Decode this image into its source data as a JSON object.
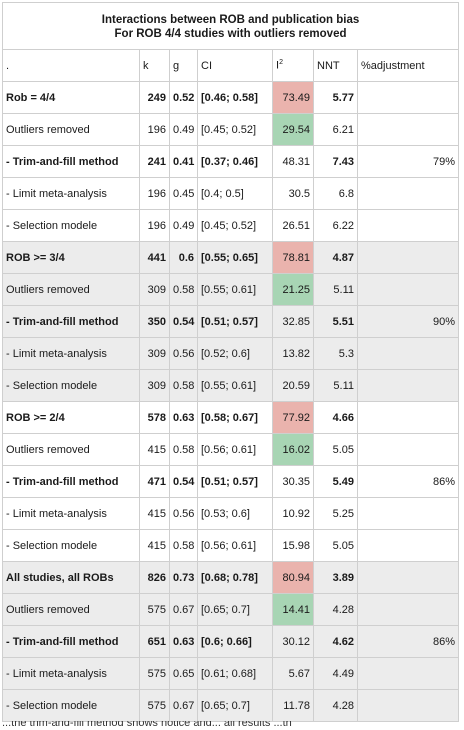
{
  "title_line1": "Interactions between ROB and publication bias",
  "title_line2": "For ROB 4/4 studies with outliers removed",
  "header": {
    "label": ".",
    "k": "k",
    "g": "g",
    "ci": "CI",
    "i2": "I",
    "i2_sup": "2",
    "nnt": "NNT",
    "adj": "%adjustment"
  },
  "rows": [
    {
      "label": "Rob = 4/4",
      "k": "249",
      "g": "0.52",
      "ci": "[0.46; 0.58]",
      "i2": "73.49",
      "nnt": "5.77",
      "adj": "",
      "bold": true,
      "grey": false,
      "i2color": "red"
    },
    {
      "label": "Outliers removed",
      "k": "196",
      "g": "0.49",
      "ci": "[0.45; 0.52]",
      "i2": "29.54",
      "nnt": "6.21",
      "adj": "",
      "bold": false,
      "grey": false,
      "i2color": "green"
    },
    {
      "label": "- Trim-and-fill method",
      "k": "241",
      "g": "0.41",
      "ci": "[0.37; 0.46]",
      "i2": "48.31",
      "nnt": "7.43",
      "adj": "79%",
      "bold": true,
      "grey": false,
      "i2color": ""
    },
    {
      "label": "- Limit meta-analysis",
      "k": "196",
      "g": "0.45",
      "ci": "[0.4; 0.5]",
      "i2": "30.5",
      "nnt": "6.8",
      "adj": "",
      "bold": false,
      "grey": false,
      "i2color": ""
    },
    {
      "label": "- Selection modele",
      "k": "196",
      "g": "0.49",
      "ci": "[0.45; 0.52]",
      "i2": "26.51",
      "nnt": "6.22",
      "adj": "",
      "bold": false,
      "grey": false,
      "i2color": ""
    },
    {
      "label": "ROB >= 3/4",
      "k": "441",
      "g": "0.6",
      "ci": "[0.55; 0.65]",
      "i2": "78.81",
      "nnt": "4.87",
      "adj": "",
      "bold": true,
      "grey": true,
      "i2color": "red"
    },
    {
      "label": "Outliers removed",
      "k": "309",
      "g": "0.58",
      "ci": "[0.55; 0.61]",
      "i2": "21.25",
      "nnt": "5.11",
      "adj": "",
      "bold": false,
      "grey": true,
      "i2color": "green"
    },
    {
      "label": "- Trim-and-fill method",
      "k": "350",
      "g": "0.54",
      "ci": "[0.51; 0.57]",
      "i2": "32.85",
      "nnt": "5.51",
      "adj": "90%",
      "bold": true,
      "grey": true,
      "i2color": ""
    },
    {
      "label": "- Limit meta-analysis",
      "k": "309",
      "g": "0.56",
      "ci": "[0.52; 0.6]",
      "i2": "13.82",
      "nnt": "5.3",
      "adj": "",
      "bold": false,
      "grey": true,
      "i2color": ""
    },
    {
      "label": "- Selection modele",
      "k": "309",
      "g": "0.58",
      "ci": "[0.55; 0.61]",
      "i2": "20.59",
      "nnt": "5.11",
      "adj": "",
      "bold": false,
      "grey": true,
      "i2color": ""
    },
    {
      "label": "ROB >= 2/4",
      "k": "578",
      "g": "0.63",
      "ci": "[0.58; 0.67]",
      "i2": "77.92",
      "nnt": "4.66",
      "adj": "",
      "bold": true,
      "grey": false,
      "i2color": "red"
    },
    {
      "label": "Outliers removed",
      "k": "415",
      "g": "0.58",
      "ci": "[0.56; 0.61]",
      "i2": "16.02",
      "nnt": "5.05",
      "adj": "",
      "bold": false,
      "grey": false,
      "i2color": "green"
    },
    {
      "label": "- Trim-and-fill method",
      "k": "471",
      "g": "0.54",
      "ci": "[0.51; 0.57]",
      "i2": "30.35",
      "nnt": "5.49",
      "adj": "86%",
      "bold": true,
      "grey": false,
      "i2color": ""
    },
    {
      "label": "- Limit meta-analysis",
      "k": "415",
      "g": "0.56",
      "ci": "[0.53; 0.6]",
      "i2": "10.92",
      "nnt": "5.25",
      "adj": "",
      "bold": false,
      "grey": false,
      "i2color": ""
    },
    {
      "label": "- Selection modele",
      "k": "415",
      "g": "0.58",
      "ci": "[0.56; 0.61]",
      "i2": "15.98",
      "nnt": "5.05",
      "adj": "",
      "bold": false,
      "grey": false,
      "i2color": ""
    },
    {
      "label": "All studies, all ROBs",
      "k": "826",
      "g": "0.73",
      "ci": "[0.68; 0.78]",
      "i2": "80.94",
      "nnt": "3.89",
      "adj": "",
      "bold": true,
      "grey": true,
      "i2color": "red"
    },
    {
      "label": "Outliers removed",
      "k": "575",
      "g": "0.67",
      "ci": "[0.65; 0.7]",
      "i2": "14.41",
      "nnt": "4.28",
      "adj": "",
      "bold": false,
      "grey": true,
      "i2color": "green"
    },
    {
      "label": "- Trim-and-fill method",
      "k": "651",
      "g": "0.63",
      "ci": "[0.6; 0.66]",
      "i2": "30.12",
      "nnt": "4.62",
      "adj": "86%",
      "bold": true,
      "grey": true,
      "i2color": ""
    },
    {
      "label": "- Limit meta-analysis",
      "k": "575",
      "g": "0.65",
      "ci": "[0.61; 0.68]",
      "i2": "5.67",
      "nnt": "4.49",
      "adj": "",
      "bold": false,
      "grey": true,
      "i2color": ""
    },
    {
      "label": "- Selection modele",
      "k": "575",
      "g": "0.67",
      "ci": "[0.65; 0.7]",
      "i2": "11.78",
      "nnt": "4.28",
      "adj": "",
      "bold": false,
      "grey": true,
      "i2color": ""
    }
  ],
  "cutoff_text": "...the trim-and-fill method shows notice and... all results ...th"
}
